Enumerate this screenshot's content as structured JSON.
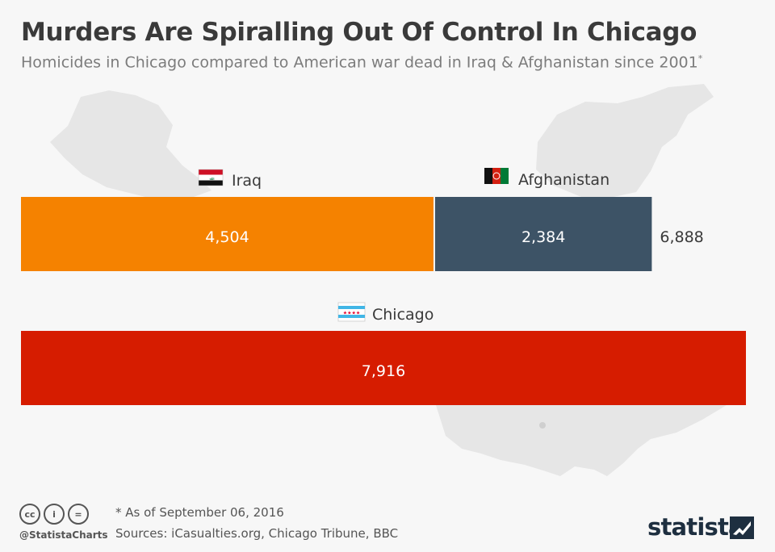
{
  "header": {
    "title": "Murders Are Spiralling Out Of Control In Chicago",
    "subtitle": "Homicides in Chicago compared to American war dead in Iraq & Afghanistan since 2001",
    "subtitle_mark": "*"
  },
  "chart_data": {
    "type": "bar",
    "orientation": "horizontal",
    "stacked": true,
    "title": "Murders Are Spiralling Out Of Control In Chicago",
    "subtitle": "Homicides in Chicago compared to American war dead in Iraq & Afghanistan since 2001*",
    "xlim": [
      0,
      7916
    ],
    "rows": [
      {
        "name": "war-dead",
        "segments": [
          {
            "label": "Iraq",
            "value": 4504,
            "value_label": "4,504",
            "color": "#f58200",
            "flag": "iraq-flag-icon"
          },
          {
            "label": "Afghanistan",
            "value": 2384,
            "value_label": "2,384",
            "color": "#3d5366",
            "flag": "afghanistan-flag-icon"
          }
        ],
        "total": 6888,
        "total_label": "6,888"
      },
      {
        "name": "chicago",
        "segments": [
          {
            "label": "Chicago",
            "value": 7916,
            "value_label": "7,916",
            "color": "#d61c00",
            "flag": "chicago-flag-icon"
          }
        ]
      }
    ]
  },
  "footer": {
    "note": "* As of September 06, 2016",
    "sources": "Sources: iCasualties.org, Chicago Tribune, BBC",
    "handle": "@StatistaCharts",
    "brand": "statista"
  },
  "colors": {
    "iraq": "#f58200",
    "afghanistan": "#3d5366",
    "chicago": "#d61c00",
    "map": "#e6e6e6"
  }
}
